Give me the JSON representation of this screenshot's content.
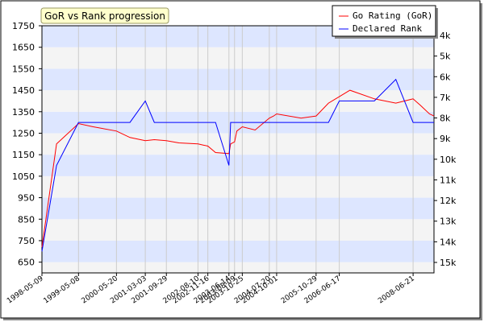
{
  "chart_data": {
    "type": "line",
    "title": "GoR vs Rank progression",
    "x": [
      "1998-05-09",
      "1998-10-01",
      "1999-05-08",
      "1999-10-01",
      "2000-05-20",
      "2000-10-01",
      "2001-03-03",
      "2001-06-01",
      "2001-09-29",
      "2002-02-01",
      "2002-08-10",
      "2002-10-01",
      "2002-11-16",
      "2003-02-01",
      "2003-06-14",
      "2003-07-01",
      "2003-08-09",
      "2003-09-01",
      "2003-10-25",
      "2004-03-01",
      "2004-07-20",
      "2004-09-01",
      "2004-10-01",
      "2005-06-01",
      "2005-10-29",
      "2006-03-01",
      "2006-06-17",
      "2006-10-01",
      "2007-06-01",
      "2008-01-01",
      "2008-06-21",
      "2008-09-01",
      "2008-12-01",
      "2009-01-15"
    ],
    "x_tick_labels": [
      "1998-05-09",
      "1999-05-08",
      "2000-05-20",
      "2001-03-03",
      "2001-09-29",
      "2002-08-10",
      "2002-11-16",
      "2003-06-14",
      "2003-08-09",
      "2003-10-25",
      "2004-07-20",
      "2004-10-01",
      "2005-10-29",
      "2006-06-17",
      "2008-06-21"
    ],
    "y_left_ticks": [
      650,
      750,
      850,
      950,
      1050,
      1150,
      1250,
      1350,
      1450,
      1550,
      1650,
      1750
    ],
    "ylim": [
      600,
      1750
    ],
    "y_right_ticks": [
      "4k",
      "5k",
      "6k",
      "7k",
      "8k",
      "9k",
      "10k",
      "11k",
      "12k",
      "13k",
      "14k",
      "15k"
    ],
    "grid": true,
    "legend_position": "top-right",
    "series": [
      {
        "name": "Go Rating (GoR)",
        "color": "#ff0000",
        "values": [
          720,
          1200,
          1295,
          1280,
          1260,
          1230,
          1215,
          1220,
          1215,
          1205,
          1200,
          1195,
          1190,
          1160,
          1155,
          1200,
          1210,
          1260,
          1280,
          1265,
          1320,
          1330,
          1340,
          1320,
          1330,
          1390,
          1420,
          1450,
          1410,
          1390,
          1410,
          1380,
          1340,
          1330
        ]
      },
      {
        "name": "Declared Rank",
        "color": "#0000ff",
        "values": [
          700,
          1100,
          1300,
          1300,
          1300,
          1300,
          1400,
          1300,
          1300,
          1300,
          1300,
          1300,
          1300,
          1300,
          1100,
          1300,
          1300,
          1300,
          1300,
          1300,
          1300,
          1300,
          1300,
          1300,
          1300,
          1300,
          1400,
          1400,
          1400,
          1500,
          1300,
          1300,
          1300,
          1300
        ]
      }
    ]
  }
}
